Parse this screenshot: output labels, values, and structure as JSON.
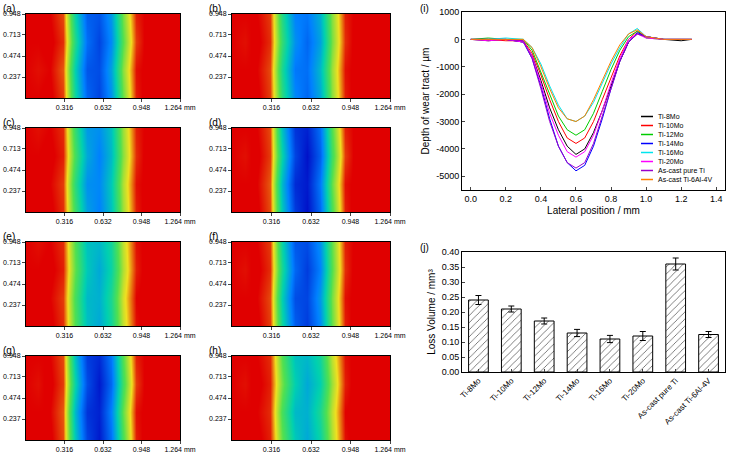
{
  "chart_data": [
    {
      "type": "heatmap",
      "title": "(a)",
      "x": [
        0,
        0.1,
        0.2,
        0.3,
        0.4,
        0.5,
        0.6,
        0.7,
        0.8,
        0.9,
        1.0,
        1.1,
        1.264
      ],
      "y": [
        0,
        0.316,
        0.632,
        0.948
      ],
      "z": [
        [
          0,
          0,
          50,
          -200,
          -2300,
          -3800,
          -4200,
          -3300,
          -1500,
          -100,
          100,
          0,
          0
        ],
        [
          0,
          -50,
          0,
          -300,
          -2500,
          -4000,
          -4100,
          -3100,
          -1300,
          -50,
          50,
          0,
          0
        ],
        [
          0,
          0,
          50,
          -150,
          -2100,
          -3700,
          -4200,
          -3400,
          -1600,
          -200,
          100,
          0,
          0
        ],
        [
          0,
          0,
          0,
          -250,
          -2400,
          -3900,
          -4000,
          -3200,
          -1400,
          -100,
          50,
          0,
          0
        ]
      ],
      "zlim": [
        -5000,
        0
      ],
      "xlim": [
        0,
        1.264
      ],
      "ylim": [
        0,
        0.948
      ],
      "xticks": [
        0.316,
        0.632,
        0.948,
        {
          "value": 1.264,
          "label": "1.264 mm"
        }
      ],
      "yticks": [
        0.237,
        0.474,
        0.713,
        0.948
      ]
    },
    {
      "type": "heatmap",
      "title": "(b)",
      "x": [
        0,
        0.1,
        0.2,
        0.3,
        0.4,
        0.5,
        0.6,
        0.7,
        0.8,
        0.9,
        1.0,
        1.1,
        1.264
      ],
      "y": [
        0,
        0.316,
        0.632,
        0.948
      ],
      "z": [
        [
          0,
          0,
          50,
          -200,
          -2000,
          -3400,
          -3800,
          -3000,
          -1300,
          -100,
          100,
          0,
          0
        ],
        [
          0,
          0,
          0,
          -250,
          -2200,
          -3600,
          -3700,
          -2800,
          -1200,
          -50,
          50,
          0,
          0
        ],
        [
          0,
          -50,
          50,
          -150,
          -1900,
          -3300,
          -3800,
          -3100,
          -1400,
          -150,
          100,
          0,
          0
        ],
        [
          0,
          0,
          0,
          -200,
          -2100,
          -3500,
          -3600,
          -2900,
          -1300,
          -100,
          50,
          0,
          0
        ]
      ],
      "zlim": [
        -5000,
        0
      ],
      "xlim": [
        0,
        1.264
      ],
      "ylim": [
        0,
        0.948
      ],
      "xticks": [
        0.316,
        0.632,
        0.948,
        {
          "value": 1.264,
          "label": "1.264 mm"
        }
      ],
      "yticks": [
        0.237,
        0.474,
        0.713,
        0.948
      ]
    },
    {
      "type": "heatmap",
      "title": "(c)",
      "x": [
        0,
        0.1,
        0.2,
        0.3,
        0.4,
        0.5,
        0.6,
        0.7,
        0.8,
        0.9,
        1.0,
        1.1,
        1.264
      ],
      "y": [
        0,
        0.316,
        0.632,
        0.948
      ],
      "z": [
        [
          0,
          0,
          50,
          -150,
          -1800,
          -3100,
          -3500,
          -2700,
          -1200,
          -100,
          100,
          0,
          0
        ],
        [
          0,
          0,
          0,
          -200,
          -2000,
          -3300,
          -3400,
          -2600,
          -1100,
          -50,
          50,
          0,
          0
        ],
        [
          0,
          0,
          50,
          -100,
          -1700,
          -3000,
          -3500,
          -2800,
          -1300,
          -150,
          100,
          0,
          0
        ],
        [
          0,
          -50,
          0,
          -150,
          -1900,
          -3200,
          -3300,
          -2700,
          -1200,
          -100,
          50,
          0,
          0
        ]
      ],
      "zlim": [
        -5000,
        0
      ],
      "xlim": [
        0,
        1.264
      ],
      "ylim": [
        0,
        0.948
      ],
      "xticks": [
        0.316,
        0.632,
        0.948,
        {
          "value": 1.264,
          "label": "1.264 mm"
        }
      ],
      "yticks": [
        0.237,
        0.474,
        0.713,
        0.948
      ]
    },
    {
      "type": "heatmap",
      "title": "(d)",
      "x": [
        0,
        0.1,
        0.2,
        0.3,
        0.4,
        0.5,
        0.6,
        0.7,
        0.8,
        0.9,
        1.0,
        1.1,
        1.264
      ],
      "y": [
        0,
        0.316,
        0.632,
        0.948
      ],
      "z": [
        [
          0,
          0,
          50,
          -250,
          -2600,
          -4300,
          -4800,
          -3800,
          -1700,
          -100,
          100,
          0,
          0
        ],
        [
          0,
          0,
          0,
          -300,
          -2800,
          -4500,
          -4700,
          -3600,
          -1500,
          -50,
          50,
          0,
          0
        ],
        [
          0,
          -50,
          50,
          -200,
          -2400,
          -4200,
          -4800,
          -3900,
          -1800,
          -200,
          100,
          0,
          0
        ],
        [
          0,
          0,
          0,
          -250,
          -2700,
          -4400,
          -4600,
          -3700,
          -1600,
          -100,
          50,
          0,
          0
        ]
      ],
      "zlim": [
        -5000,
        0
      ],
      "xlim": [
        0,
        1.264
      ],
      "ylim": [
        0,
        0.948
      ],
      "xticks": [
        0.316,
        0.632,
        0.948,
        {
          "value": 1.264,
          "label": "1.264 mm"
        }
      ],
      "yticks": [
        0.237,
        0.474,
        0.713,
        0.948
      ]
    },
    {
      "type": "heatmap",
      "title": "(e)",
      "x": [
        0,
        0.1,
        0.2,
        0.3,
        0.4,
        0.5,
        0.6,
        0.7,
        0.8,
        0.9,
        1.0,
        1.1,
        1.264
      ],
      "y": [
        0,
        0.316,
        0.632,
        0.948
      ],
      "z": [
        [
          0,
          0,
          50,
          -150,
          -1600,
          -2700,
          -3000,
          -2300,
          -1000,
          -50,
          100,
          0,
          0
        ],
        [
          0,
          0,
          0,
          -200,
          -1700,
          -2800,
          -2900,
          -2200,
          -900,
          0,
          50,
          0,
          0
        ],
        [
          0,
          0,
          50,
          -100,
          -1500,
          -2600,
          -3000,
          -2400,
          -1100,
          -100,
          100,
          0,
          0
        ],
        [
          0,
          -50,
          0,
          -150,
          -1600,
          -2700,
          -2800,
          -2300,
          -1000,
          -50,
          50,
          0,
          0
        ]
      ],
      "zlim": [
        -5000,
        0
      ],
      "xlim": [
        0,
        1.264
      ],
      "ylim": [
        0,
        0.948
      ],
      "xticks": [
        0.316,
        0.632,
        0.948,
        {
          "value": 1.264,
          "label": "1.264 mm"
        }
      ],
      "yticks": [
        0.237,
        0.474,
        0.713,
        0.948
      ]
    },
    {
      "type": "heatmap",
      "title": "(f)",
      "x": [
        0,
        0.1,
        0.2,
        0.3,
        0.4,
        0.5,
        0.6,
        0.7,
        0.8,
        0.9,
        1.0,
        1.1,
        1.264
      ],
      "y": [
        0,
        0.316,
        0.632,
        0.948
      ],
      "z": [
        [
          0,
          0,
          50,
          -200,
          -2300,
          -3900,
          -4300,
          -3400,
          -1500,
          -100,
          100,
          0,
          0
        ],
        [
          0,
          0,
          0,
          -250,
          -2500,
          -4100,
          -4200,
          -3200,
          -1400,
          -50,
          50,
          0,
          0
        ],
        [
          0,
          -50,
          50,
          -150,
          -2200,
          -3800,
          -4300,
          -3500,
          -1600,
          -150,
          100,
          0,
          0
        ],
        [
          0,
          0,
          0,
          -200,
          -2400,
          -4000,
          -4100,
          -3300,
          -1500,
          -100,
          50,
          0,
          0
        ]
      ],
      "zlim": [
        -5000,
        0
      ],
      "xlim": [
        0,
        1.264
      ],
      "ylim": [
        0,
        0.948
      ],
      "xticks": [
        0.316,
        0.632,
        0.948,
        {
          "value": 1.264,
          "label": "1.264 mm"
        }
      ],
      "yticks": [
        0.237,
        0.474,
        0.713,
        0.948
      ]
    },
    {
      "type": "heatmap",
      "title": "(g)",
      "x": [
        0,
        0.1,
        0.2,
        0.3,
        0.4,
        0.5,
        0.6,
        0.7,
        0.8,
        0.9,
        1.0,
        1.1,
        1.264
      ],
      "y": [
        0,
        0.316,
        0.632,
        0.948
      ],
      "z": [
        [
          0,
          0,
          50,
          -250,
          -2600,
          -4200,
          -4700,
          -3700,
          -1700,
          -100,
          100,
          0,
          0
        ],
        [
          0,
          0,
          0,
          -300,
          -2800,
          -4400,
          -4600,
          -3500,
          -1500,
          -50,
          50,
          0,
          0
        ],
        [
          0,
          -50,
          50,
          -200,
          -2400,
          -4100,
          -4700,
          -3800,
          -1800,
          -200,
          100,
          0,
          0
        ],
        [
          0,
          0,
          0,
          -250,
          -2700,
          -4300,
          -4500,
          -3600,
          -1600,
          -100,
          50,
          0,
          0
        ]
      ],
      "zlim": [
        -5000,
        0
      ],
      "xlim": [
        0,
        1.264
      ],
      "ylim": [
        0,
        0.948
      ],
      "xticks": [
        0.316,
        0.632,
        0.948,
        {
          "value": 1.264,
          "label": "1.264 mm"
        }
      ],
      "yticks": [
        0.237,
        0.474,
        0.713,
        0.948
      ]
    },
    {
      "type": "heatmap",
      "title": "(h)",
      "x": [
        0,
        0.1,
        0.2,
        0.3,
        0.4,
        0.5,
        0.6,
        0.7,
        0.8,
        0.9,
        1.0,
        1.1,
        1.264
      ],
      "y": [
        0,
        0.316,
        0.632,
        0.948
      ],
      "z": [
        [
          0,
          0,
          50,
          -100,
          -1500,
          -2600,
          -3000,
          -2400,
          -1100,
          -50,
          100,
          0,
          0
        ],
        [
          0,
          0,
          0,
          -150,
          -1700,
          -2800,
          -2900,
          -2200,
          -1000,
          0,
          50,
          0,
          0
        ],
        [
          0,
          -50,
          50,
          -100,
          -1400,
          -2500,
          -3000,
          -2500,
          -1200,
          -100,
          100,
          0,
          0
        ],
        [
          0,
          0,
          0,
          -150,
          -1600,
          -2700,
          -2800,
          -2300,
          -1000,
          -50,
          50,
          0,
          0
        ]
      ],
      "zlim": [
        -5000,
        0
      ],
      "xlim": [
        0,
        1.264
      ],
      "ylim": [
        0,
        0.948
      ],
      "xticks": [
        0.316,
        0.632,
        0.948,
        {
          "value": 1.264,
          "label": "1.264 mm"
        }
      ],
      "yticks": [
        0.237,
        0.474,
        0.713,
        0.948
      ]
    },
    {
      "type": "line",
      "title": "(i)",
      "x_label": "Lateral position / mm",
      "y_label": "Depth of wear tract / µm",
      "x": [
        0,
        0.1,
        0.2,
        0.3,
        0.35,
        0.4,
        0.45,
        0.5,
        0.55,
        0.6,
        0.65,
        0.7,
        0.75,
        0.8,
        0.85,
        0.9,
        0.95,
        1.0,
        1.1,
        1.2,
        1.26
      ],
      "series": [
        {
          "name": "Ti-8Mo",
          "color": "#000000",
          "values": [
            0,
            -50,
            0,
            -100,
            -600,
            -1500,
            -2500,
            -3300,
            -3900,
            -4200,
            -4000,
            -3400,
            -2600,
            -1700,
            -800,
            -100,
            200,
            100,
            0,
            -50,
            0
          ]
        },
        {
          "name": "Ti-10Mo",
          "color": "#ff0000",
          "values": [
            0,
            0,
            -50,
            -50,
            -500,
            -1300,
            -2200,
            -3000,
            -3600,
            -3800,
            -3600,
            -3000,
            -2200,
            -1400,
            -600,
            0,
            300,
            100,
            0,
            0,
            0
          ]
        },
        {
          "name": "Ti-12Mo",
          "color": "#00cc00",
          "values": [
            0,
            50,
            0,
            0,
            -400,
            -1200,
            -2000,
            -2800,
            -3300,
            -3500,
            -3300,
            -2700,
            -1900,
            -1100,
            -400,
            100,
            300,
            50,
            0,
            0,
            0
          ]
        },
        {
          "name": "Ti-14Mo",
          "color": "#0000ff",
          "values": [
            0,
            0,
            0,
            -100,
            -700,
            -1700,
            -2900,
            -3900,
            -4500,
            -4800,
            -4600,
            -3900,
            -2900,
            -1800,
            -800,
            -100,
            250,
            100,
            0,
            0,
            0
          ]
        },
        {
          "name": "Ti-16Mo",
          "color": "#00e5ee",
          "values": [
            0,
            0,
            50,
            0,
            -300,
            -900,
            -1700,
            -2400,
            -2900,
            -3000,
            -2800,
            -2300,
            -1600,
            -900,
            -300,
            200,
            400,
            100,
            0,
            0,
            0
          ]
        },
        {
          "name": "Ti-20Mo",
          "color": "#ff00ff",
          "values": [
            0,
            -50,
            0,
            -100,
            -600,
            -1600,
            -2700,
            -3500,
            -4100,
            -4300,
            -4100,
            -3500,
            -2600,
            -1600,
            -700,
            0,
            200,
            50,
            0,
            0,
            0
          ]
        },
        {
          "name": "As-cast pure Ti",
          "color": "#9900cc",
          "values": [
            0,
            0,
            0,
            -50,
            -700,
            -1800,
            -3000,
            -3900,
            -4500,
            -4700,
            -4500,
            -3800,
            -2800,
            -1800,
            -800,
            -100,
            200,
            100,
            0,
            0,
            0
          ]
        },
        {
          "name": "As-cast Ti-6Al-4V",
          "color": "#ff8000",
          "values": [
            0,
            0,
            0,
            0,
            -300,
            -1000,
            -1800,
            -2500,
            -2900,
            -3000,
            -2800,
            -2200,
            -1500,
            -800,
            -200,
            200,
            350,
            100,
            0,
            0,
            0
          ]
        }
      ],
      "xlim": [
        -0.05,
        1.45
      ],
      "xticks": [
        {
          "value": 0,
          "label": "0.0"
        },
        0.2,
        0.4,
        0.6,
        0.8,
        {
          "value": 1,
          "label": "1.0"
        },
        1.2,
        1.4
      ],
      "ylim": [
        -5500,
        1000
      ],
      "yticks": [
        -5000,
        -4000,
        -3000,
        -2000,
        -1000,
        0,
        1000
      ],
      "legend": "lower right"
    },
    {
      "type": "bar",
      "title": "(j)",
      "y_label": "Loss Volume / mm³",
      "categories": [
        "Ti-8Mo",
        "Ti-10Mo",
        "Ti-12Mo",
        "Ti-14Mo",
        "Ti-16Mo",
        "Ti-20Mo",
        "As-cast pure Ti",
        "As-cast Ti-6Al-4V"
      ],
      "values": [
        0.24,
        0.21,
        0.17,
        0.13,
        0.11,
        0.12,
        0.36,
        0.125
      ],
      "errors": [
        0.015,
        0.01,
        0.01,
        0.012,
        0.012,
        0.015,
        0.02,
        0.01
      ],
      "color": "#ffffff",
      "ylim": [
        0,
        0.4
      ],
      "yticks": [
        {
          "value": 0,
          "label": "0.00"
        },
        0.05,
        {
          "value": 0.1,
          "label": "0.10"
        },
        0.15,
        {
          "value": 0.2,
          "label": "0.20"
        },
        0.25,
        {
          "value": 0.3,
          "label": "0.30"
        },
        0.35,
        {
          "value": 0.4,
          "label": "0.40"
        }
      ]
    }
  ]
}
